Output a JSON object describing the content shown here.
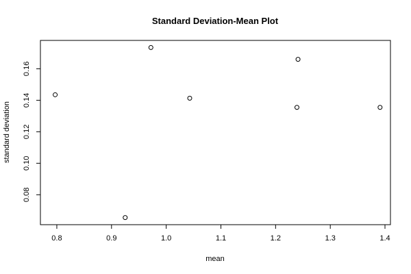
{
  "chart_data": {
    "type": "scatter",
    "title": "Standard Deviation-Mean Plot",
    "xlabel": "mean",
    "ylabel": "standard deviation",
    "xlim": [
      0.77,
      1.41
    ],
    "ylim": [
      0.061,
      0.178
    ],
    "x_ticks": [
      0.8,
      0.9,
      1.0,
      1.1,
      1.2,
      1.3,
      1.4
    ],
    "x_tick_labels": [
      "0.8",
      "0.9",
      "1.0",
      "1.1",
      "1.2",
      "1.3",
      "1.4"
    ],
    "y_ticks": [
      0.08,
      0.1,
      0.12,
      0.14,
      0.16
    ],
    "y_tick_labels": [
      "0.08",
      "0.10",
      "0.12",
      "0.14",
      "0.16"
    ],
    "grid": false,
    "marker": "open-circle",
    "points": [
      {
        "x": 0.797,
        "y": 0.1435
      },
      {
        "x": 0.925,
        "y": 0.0655
      },
      {
        "x": 0.972,
        "y": 0.1735
      },
      {
        "x": 1.043,
        "y": 0.1413
      },
      {
        "x": 1.239,
        "y": 0.1355
      },
      {
        "x": 1.241,
        "y": 0.166
      },
      {
        "x": 1.391,
        "y": 0.1355
      }
    ]
  }
}
